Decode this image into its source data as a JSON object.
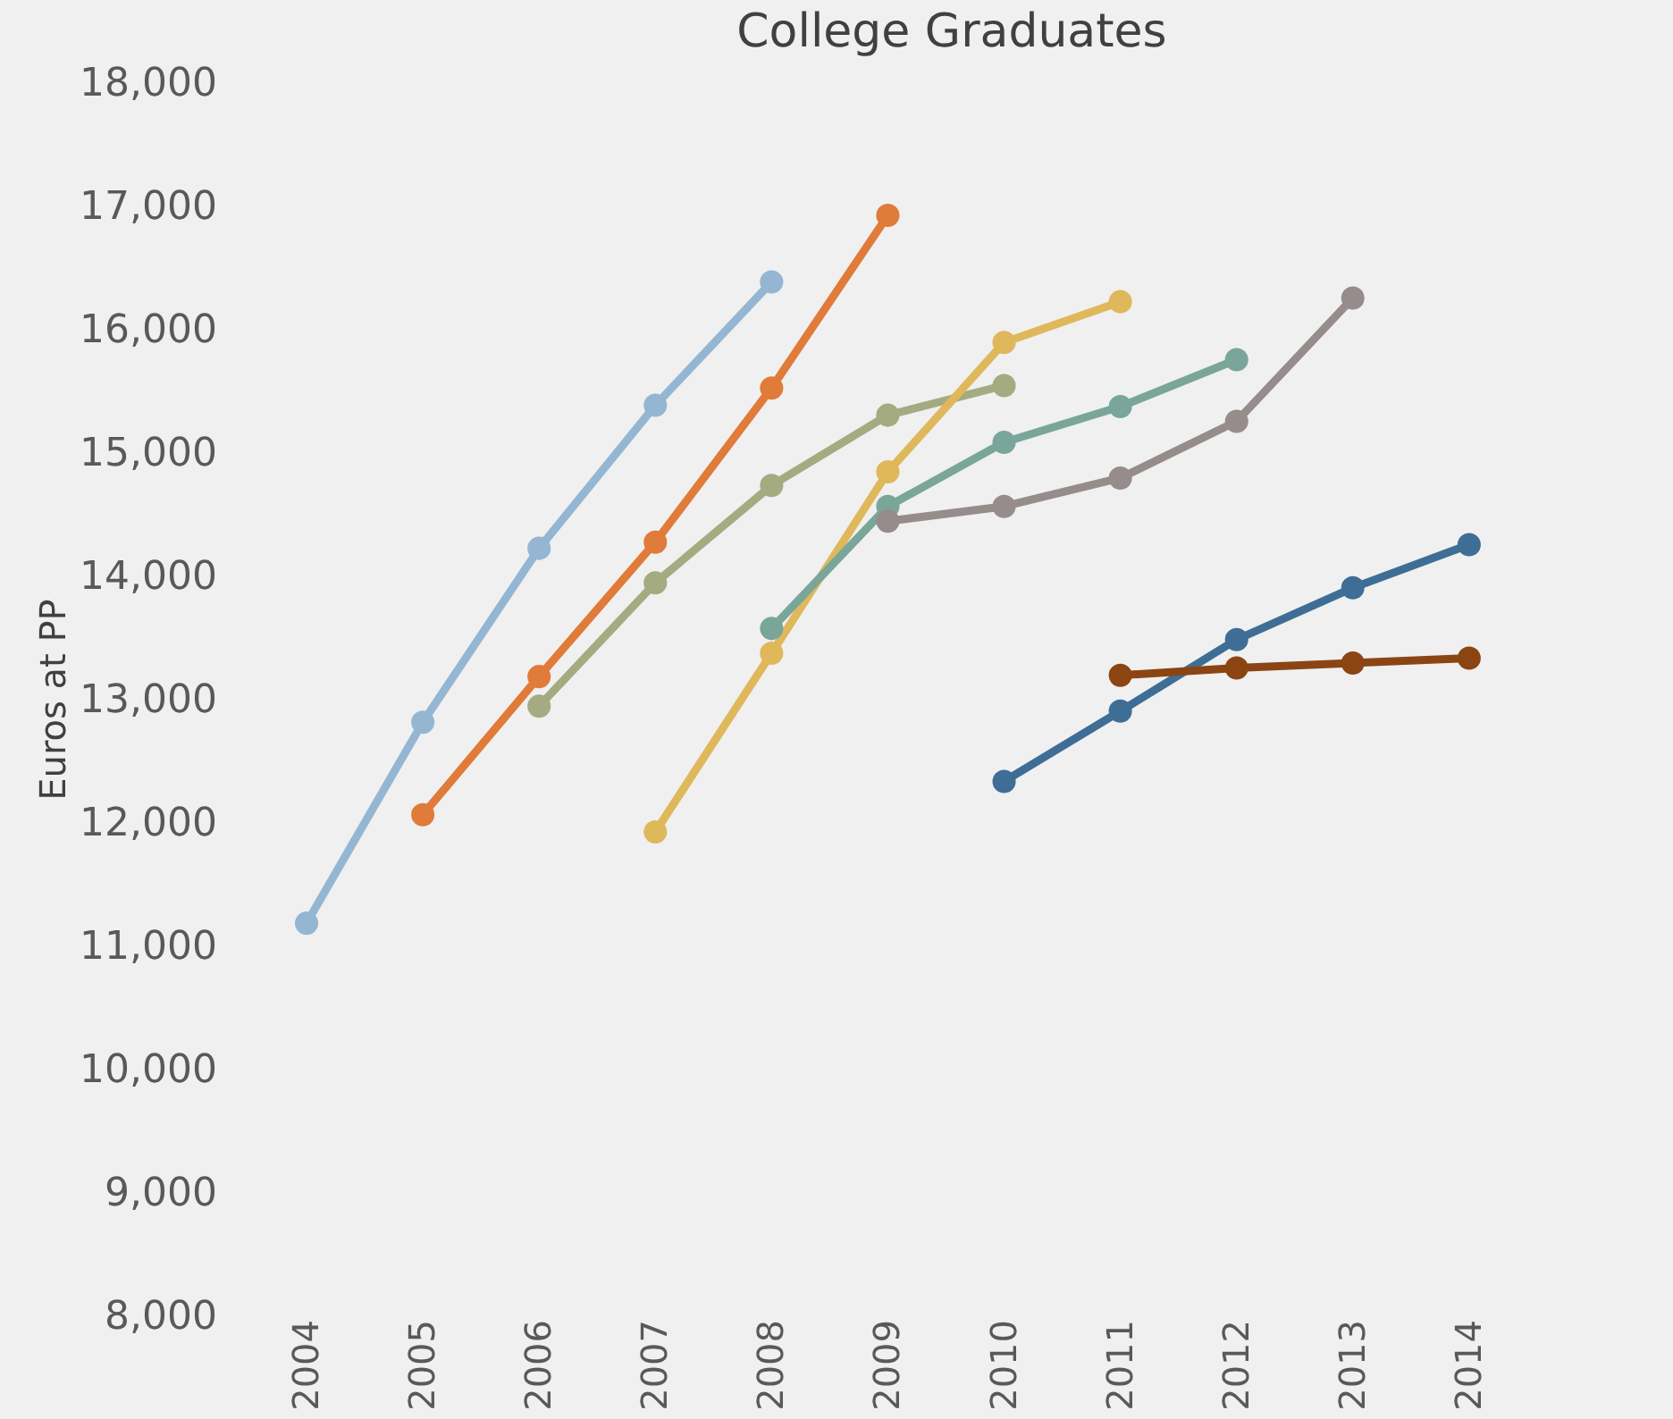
{
  "chart_data": {
    "type": "line",
    "title": "College Graduates",
    "ylabel": "Euros at PP",
    "categories": [
      "2004",
      "2005",
      "2006",
      "2007",
      "2008",
      "2009",
      "2010",
      "2011",
      "2012",
      "2013",
      "2014"
    ],
    "ylim": [
      8000,
      18000
    ],
    "yticks": [
      {
        "value": 8000,
        "label": "8,000"
      },
      {
        "value": 9000,
        "label": "9,000"
      },
      {
        "value": 10000,
        "label": "10,000"
      },
      {
        "value": 11000,
        "label": "11,000"
      },
      {
        "value": 12000,
        "label": "12,000"
      },
      {
        "value": 13000,
        "label": "13,000"
      },
      {
        "value": 14000,
        "label": "14,000"
      },
      {
        "value": 15000,
        "label": "15,000"
      },
      {
        "value": 16000,
        "label": "16,000"
      },
      {
        "value": 17000,
        "label": "17,000"
      },
      {
        "value": 18000,
        "label": "18,000"
      }
    ],
    "grid": false,
    "legend": false,
    "marker": "circle",
    "line_style": "solid",
    "series": [
      {
        "color": "#94b6d2",
        "values": [
          11180,
          12810,
          14220,
          15380,
          16380,
          null,
          null,
          null,
          null,
          null,
          null
        ]
      },
      {
        "color": "#e07b39",
        "values": [
          null,
          12060,
          13180,
          14270,
          15520,
          16920,
          null,
          null,
          null,
          null,
          null
        ]
      },
      {
        "color": "#a5ab81",
        "values": [
          null,
          null,
          12940,
          13940,
          14730,
          15300,
          15540,
          null,
          null,
          null,
          null
        ]
      },
      {
        "color": "#dfb85b",
        "values": [
          null,
          null,
          null,
          11920,
          13370,
          14840,
          15890,
          16220,
          null,
          null,
          null
        ]
      },
      {
        "color": "#7aa69a",
        "values": [
          null,
          null,
          null,
          null,
          13570,
          14560,
          15080,
          15370,
          15750,
          null,
          null
        ]
      },
      {
        "color": "#968c8c",
        "values": [
          null,
          null,
          null,
          null,
          null,
          14440,
          14560,
          14790,
          15250,
          16250,
          null
        ]
      },
      {
        "color": "#3e6e96",
        "values": [
          null,
          null,
          null,
          null,
          null,
          null,
          12330,
          12900,
          13480,
          13900,
          14250
        ]
      },
      {
        "color": "#8b4513",
        "values": [
          null,
          null,
          null,
          null,
          null,
          null,
          null,
          13190,
          13250,
          13290,
          13330
        ]
      }
    ]
  }
}
